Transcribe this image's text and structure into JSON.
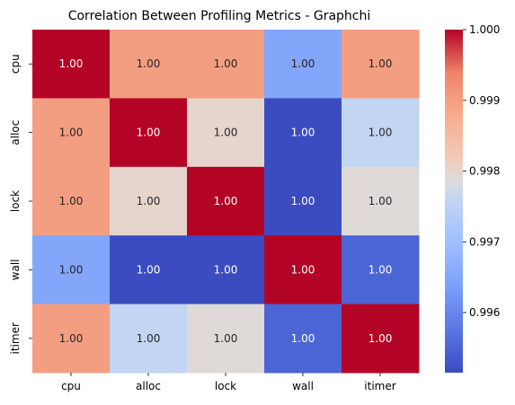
{
  "chart_data": {
    "type": "heatmap",
    "title": "Correlation Between Profiling Metrics - Graphchi",
    "x_labels": [
      "cpu",
      "alloc",
      "lock",
      "wall",
      "itimer"
    ],
    "y_labels": [
      "cpu",
      "alloc",
      "lock",
      "wall",
      "itimer"
    ],
    "values": [
      [
        1.0,
        0.999,
        0.999,
        0.9965,
        0.999
      ],
      [
        0.999,
        1.0,
        0.998,
        0.99515,
        0.9976
      ],
      [
        0.999,
        0.998,
        1.0,
        0.99515,
        0.9979
      ],
      [
        0.9965,
        0.99515,
        0.99515,
        1.0,
        0.9955
      ],
      [
        0.999,
        0.9976,
        0.9979,
        0.9955,
        1.0
      ]
    ],
    "annotations": [
      [
        "1.00",
        "1.00",
        "1.00",
        "1.00",
        "1.00"
      ],
      [
        "1.00",
        "1.00",
        "1.00",
        "1.00",
        "1.00"
      ],
      [
        "1.00",
        "1.00",
        "1.00",
        "1.00",
        "1.00"
      ],
      [
        "1.00",
        "1.00",
        "1.00",
        "1.00",
        "1.00"
      ],
      [
        "1.00",
        "1.00",
        "1.00",
        "1.00",
        "1.00"
      ]
    ],
    "colormap": "coolwarm",
    "vmin": 0.99515,
    "vmax": 1.0,
    "colorbar_ticks": [
      0.996,
      0.997,
      0.998,
      0.999,
      1.0
    ],
    "colorbar_tick_labels": [
      "0.996",
      "0.997",
      "0.998",
      "0.999",
      "1.000"
    ]
  }
}
